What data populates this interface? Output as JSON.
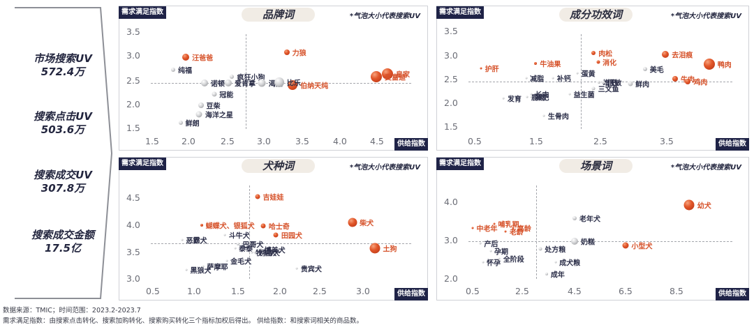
{
  "left_panel": {
    "metrics": [
      {
        "label": "市场搜索UV",
        "value": "572.4万"
      },
      {
        "label": "搜索点击UV",
        "value": "503.6万"
      },
      {
        "label": "搜索成交UV",
        "value": "307.8万"
      },
      {
        "label": "搜索成交金额",
        "value": "17.5亿"
      }
    ]
  },
  "common": {
    "ylabel": "需求满足指数",
    "xlabel": "供给指数",
    "note": "*气泡大小代表搜索UV"
  },
  "footer": {
    "line1": "数据来源：TMIC；时间范围：2023.2-2023.7",
    "line2": "需求满足指数：由搜索点击转化、搜索加购转化、搜索购买转化三个指标加权后得出。    供给指数：和搜索词相关的商品数。"
  },
  "colors": {
    "highlight": "#d6522a",
    "normal": "#2b2e48",
    "label_box": "#1f2347",
    "title_pill": "#f1ece5"
  },
  "chart_data": [
    {
      "type": "scatter",
      "title": "品牌词",
      "xlabel": "供给指数",
      "ylabel": "需求满足指数",
      "x_ticks": [
        "1.5",
        "2.0",
        "2.5",
        "3.0",
        "3.5",
        "4.0",
        "4.5"
      ],
      "y_ticks": [
        "3.5",
        "3.0",
        "2.5",
        "2.0",
        "1.5"
      ],
      "xlim": [
        1.5,
        4.7
      ],
      "ylim": [
        1.5,
        3.5
      ],
      "ref_x": 2.75,
      "ref_y": 2.45,
      "points": [
        {
          "name": "汪爸爸",
          "x": 1.95,
          "y": 3.0,
          "size": 10,
          "highlight": true
        },
        {
          "name": "力狼",
          "x": 3.3,
          "y": 3.1,
          "size": 8,
          "highlight": true
        },
        {
          "name": "皇家",
          "x": 4.65,
          "y": 2.65,
          "size": 16,
          "highlight": true
        },
        {
          "name": "麦富迪",
          "x": 4.5,
          "y": 2.58,
          "size": 16,
          "highlight": true
        },
        {
          "name": "伯纳天纯",
          "x": 3.38,
          "y": 2.42,
          "size": 14,
          "highlight": true
        },
        {
          "name": "纯福",
          "x": 1.78,
          "y": 2.73,
          "size": 6,
          "highlight": false
        },
        {
          "name": "疯狂小狗",
          "x": 2.57,
          "y": 2.58,
          "size": 6,
          "highlight": false
        },
        {
          "name": "渴望",
          "x": 2.97,
          "y": 2.46,
          "size": 11,
          "highlight": false
        },
        {
          "name": "比乐",
          "x": 3.2,
          "y": 2.47,
          "size": 14,
          "highlight": false
        },
        {
          "name": "诺顿",
          "x": 2.2,
          "y": 2.45,
          "size": 10,
          "highlight": false
        },
        {
          "name": "爱肯拿",
          "x": 2.52,
          "y": 2.45,
          "size": 10,
          "highlight": false
        },
        {
          "name": "冠能",
          "x": 2.33,
          "y": 2.22,
          "size": 7,
          "highlight": false
        },
        {
          "name": "豆柴",
          "x": 2.15,
          "y": 2.0,
          "size": 8,
          "highlight": false
        },
        {
          "name": "海洋之星",
          "x": 2.13,
          "y": 1.8,
          "size": 9,
          "highlight": false
        },
        {
          "name": "鲜朗",
          "x": 1.88,
          "y": 1.63,
          "size": 6,
          "highlight": false
        }
      ]
    },
    {
      "type": "scatter",
      "title": "成分功效词",
      "xlabel": "供给指数",
      "ylabel": "需求满足指数",
      "x_ticks": [
        "0.5",
        "1.5",
        "2.5",
        "3.5"
      ],
      "y_ticks": [
        "3.5",
        "3.0",
        "2.5",
        "2.0",
        "1.5"
      ],
      "xlim": [
        0.5,
        4.2
      ],
      "ylim": [
        1.5,
        3.5
      ],
      "ref_x": 2.15,
      "ref_y": 2.47,
      "points": [
        {
          "name": "护肝",
          "x": 0.6,
          "y": 2.75,
          "size": 2,
          "highlight": true
        },
        {
          "name": "牛油果",
          "x": 1.45,
          "y": 2.85,
          "size": 4,
          "highlight": true
        },
        {
          "name": "肉松",
          "x": 2.35,
          "y": 3.08,
          "size": 6,
          "highlight": true
        },
        {
          "name": "消化",
          "x": 2.42,
          "y": 2.88,
          "size": 5,
          "highlight": true
        },
        {
          "name": "去泪痕",
          "x": 3.47,
          "y": 3.04,
          "size": 10,
          "highlight": true
        },
        {
          "name": "美毛",
          "x": 3.15,
          "y": 2.73,
          "size": 6,
          "highlight": false
        },
        {
          "name": "鸭肉",
          "x": 4.15,
          "y": 2.84,
          "size": 16,
          "highlight": true
        },
        {
          "name": "牛肉",
          "x": 3.62,
          "y": 2.53,
          "size": 8,
          "highlight": true
        },
        {
          "name": "鸡肉",
          "x": 3.82,
          "y": 2.47,
          "size": 8,
          "highlight": true
        },
        {
          "name": "减脂",
          "x": 1.3,
          "y": 2.55,
          "size": 2,
          "highlight": false
        },
        {
          "name": "补钙",
          "x": 1.72,
          "y": 2.55,
          "size": 2,
          "highlight": false
        },
        {
          "name": "蛋黄",
          "x": 2.1,
          "y": 2.65,
          "size": 3,
          "highlight": false
        },
        {
          "name": "增肥",
          "x": 2.43,
          "y": 2.45,
          "size": 4,
          "highlight": false
        },
        {
          "name": "低敏",
          "x": 2.5,
          "y": 2.45,
          "size": 5,
          "highlight": false
        },
        {
          "name": "鲜肉",
          "x": 2.92,
          "y": 2.42,
          "size": 7,
          "highlight": false
        },
        {
          "name": "三文鱼",
          "x": 2.35,
          "y": 2.33,
          "size": 5,
          "highlight": false
        },
        {
          "name": "发育",
          "x": 0.95,
          "y": 2.12,
          "size": 2,
          "highlight": false
        },
        {
          "name": "鹿肉",
          "x": 1.32,
          "y": 2.15,
          "size": 2,
          "highlight": false
        },
        {
          "name": "长肉",
          "x": 1.38,
          "y": 2.2,
          "size": 2,
          "highlight": false
        },
        {
          "name": "减肥",
          "x": 1.38,
          "y": 2.15,
          "size": 2,
          "highlight": false
        },
        {
          "name": "益生菌",
          "x": 1.98,
          "y": 2.2,
          "size": 3,
          "highlight": false
        },
        {
          "name": "生骨肉",
          "x": 1.58,
          "y": 1.75,
          "size": 3,
          "highlight": false
        }
      ]
    },
    {
      "type": "scatter",
      "title": "犬种词",
      "xlabel": "供给指数",
      "ylabel": "需求满足指数",
      "x_ticks": [
        "0.5",
        "1.0",
        "1.5",
        "2.0",
        "2.5",
        "3.0"
      ],
      "y_ticks": [
        "4.5",
        "4.0",
        "3.5",
        "3.0"
      ],
      "xlim": [
        0.5,
        3.3
      ],
      "ylim": [
        3.0,
        4.7
      ],
      "ref_x": 1.65,
      "ref_y": 3.67,
      "points": [
        {
          "name": "吉娃娃",
          "x": 1.75,
          "y": 4.52,
          "size": 7,
          "highlight": true
        },
        {
          "name": "蝴蝶犬、银狐犬",
          "x": 1.08,
          "y": 4.0,
          "size": 4,
          "highlight": true
        },
        {
          "name": "哈士奇",
          "x": 1.82,
          "y": 3.99,
          "size": 7,
          "highlight": true
        },
        {
          "name": "田园犬",
          "x": 1.97,
          "y": 3.82,
          "size": 7,
          "highlight": true
        },
        {
          "name": "柴犬",
          "x": 2.88,
          "y": 4.05,
          "size": 13,
          "highlight": true
        },
        {
          "name": "土狗",
          "x": 3.15,
          "y": 3.58,
          "size": 15,
          "highlight": true
        },
        {
          "name": "斗牛犬",
          "x": 1.36,
          "y": 3.82,
          "size": 2,
          "highlight": false
        },
        {
          "name": "恶霸犬",
          "x": 0.85,
          "y": 3.73,
          "size": 2,
          "highlight": false
        },
        {
          "name": "巴哥犬",
          "x": 1.52,
          "y": 3.66,
          "size": 4,
          "highlight": false
        },
        {
          "name": "泰泰",
          "x": 1.48,
          "y": 3.58,
          "size": 2,
          "highlight": false
        },
        {
          "name": "博美犬",
          "x": 1.78,
          "y": 3.55,
          "size": 4,
          "highlight": false
        },
        {
          "name": "牧羊犬",
          "x": 1.68,
          "y": 3.5,
          "size": 3,
          "highlight": false
        },
        {
          "name": "柯基犬",
          "x": 1.72,
          "y": 3.5,
          "size": 3,
          "highlight": false
        },
        {
          "name": "金毛犬",
          "x": 1.38,
          "y": 3.34,
          "size": 2,
          "highlight": false
        },
        {
          "name": "黑狼犬",
          "x": 0.9,
          "y": 3.18,
          "size": 2,
          "highlight": false
        },
        {
          "name": "萨摩耶",
          "x": 1.1,
          "y": 3.24,
          "size": 2,
          "highlight": false
        },
        {
          "name": "贵宾犬",
          "x": 2.22,
          "y": 3.2,
          "size": 3,
          "highlight": false
        }
      ]
    },
    {
      "type": "scatter",
      "title": "场景词",
      "xlabel": "供给指数",
      "ylabel": "需求满足指数",
      "x_ticks": [
        "0.5",
        "2.5",
        "4.5",
        "6.5",
        "8.5"
      ],
      "y_ticks": [
        "4.0",
        "3.0",
        "2.0"
      ],
      "xlim": [
        0.5,
        9.5
      ],
      "ylim": [
        2.0,
        4.2
      ],
      "ref_x": 3.0,
      "ref_y": 3.0,
      "points": [
        {
          "name": "幼犬",
          "x": 9.0,
          "y": 3.95,
          "size": 15,
          "highlight": true
        },
        {
          "name": "小型犬",
          "x": 6.5,
          "y": 2.9,
          "size": 9,
          "highlight": true
        },
        {
          "name": "哺乳期",
          "x": 1.35,
          "y": 3.45,
          "size": 1,
          "highlight": true
        },
        {
          "name": "中老年",
          "x": 0.5,
          "y": 3.35,
          "size": 1,
          "highlight": true
        },
        {
          "name": "高龄",
          "x": 2.1,
          "y": 3.35,
          "size": 2,
          "highlight": true
        },
        {
          "name": "老龄",
          "x": 1.8,
          "y": 3.25,
          "size": 1,
          "highlight": true
        },
        {
          "name": "老年犬",
          "x": 4.5,
          "y": 3.6,
          "size": 6,
          "highlight": false
        },
        {
          "name": "奶糕",
          "x": 4.5,
          "y": 3.0,
          "size": 10,
          "highlight": false
        },
        {
          "name": "处方粮",
          "x": 3.15,
          "y": 2.8,
          "size": 5,
          "highlight": false
        },
        {
          "name": "产后",
          "x": 0.8,
          "y": 2.95,
          "size": 1,
          "highlight": false
        },
        {
          "name": "孕期",
          "x": 1.2,
          "y": 2.75,
          "size": 1,
          "highlight": false
        },
        {
          "name": "全阶段",
          "x": 1.55,
          "y": 2.55,
          "size": 1,
          "highlight": false
        },
        {
          "name": "怀孕",
          "x": 0.9,
          "y": 2.45,
          "size": 1,
          "highlight": false
        },
        {
          "name": "成犬粮",
          "x": 3.75,
          "y": 2.45,
          "size": 3,
          "highlight": false
        },
        {
          "name": "成年",
          "x": 3.4,
          "y": 2.15,
          "size": 4,
          "highlight": false
        }
      ]
    }
  ]
}
